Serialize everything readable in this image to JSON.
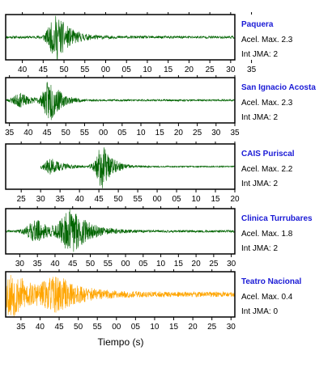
{
  "chart_data": {
    "type": "line",
    "xlabel": "Tiempo (s)",
    "panels": [
      {
        "station": "Paquera",
        "accel": "Acel. Max. 2.3",
        "jma": "Int JMA: 2",
        "color": "#006400",
        "tick_labels": [
          "40",
          "45",
          "50",
          "55",
          "00",
          "05",
          "10",
          "15",
          "20",
          "25",
          "30",
          "35"
        ],
        "first_tick_at": 40,
        "view": [
          36,
          91
        ],
        "signal_start": 36,
        "signal_end": 91,
        "bursts": [
          {
            "t": 48.5,
            "amp": 1.0,
            "w": 3.0
          }
        ],
        "noise": 0.06,
        "seed": 11
      },
      {
        "station": "San Ignacio Acosta",
        "accel": "Acel. Max. 2.3",
        "jma": "Int JMA: 2",
        "color": "#006400",
        "tick_labels": [
          "35",
          "40",
          "45",
          "50",
          "55",
          "00",
          "05",
          "10",
          "15",
          "20",
          "25",
          "30",
          "35"
        ],
        "first_tick_at": 35,
        "view": [
          34,
          95
        ],
        "signal_start": 34,
        "signal_end": 95,
        "bursts": [
          {
            "t": 38,
            "amp": 0.3,
            "w": 3.0
          },
          {
            "t": 46,
            "amp": 1.0,
            "w": 2.5
          }
        ],
        "noise": 0.04,
        "seed": 23
      },
      {
        "station": "CAIS Puriscal",
        "accel": "Acel. Max. 2.2",
        "jma": "Int JMA: 2",
        "color": "#006400",
        "tick_labels": [
          "25",
          "30",
          "35",
          "40",
          "45",
          "50",
          "55",
          "00",
          "05",
          "10",
          "15",
          "20"
        ],
        "first_tick_at": 25,
        "view": [
          21,
          80
        ],
        "signal_start": 30,
        "signal_end": 80,
        "bursts": [
          {
            "t": 33,
            "amp": 0.35,
            "w": 3.0
          },
          {
            "t": 46,
            "amp": 1.0,
            "w": 2.5
          }
        ],
        "noise": 0.03,
        "seed": 37
      },
      {
        "station": "Clinica Turrubares",
        "accel": "Acel. Max. 1.8",
        "jma": "Int JMA: 2",
        "color": "#006400",
        "tick_labels": [
          "30",
          "35",
          "40",
          "45",
          "50",
          "55",
          "00",
          "05",
          "10",
          "15",
          "20",
          "25",
          "30"
        ],
        "first_tick_at": 30,
        "view": [
          26,
          91
        ],
        "signal_start": 26,
        "signal_end": 91,
        "bursts": [
          {
            "t": 35,
            "amp": 0.5,
            "w": 4.0
          },
          {
            "t": 45,
            "amp": 1.0,
            "w": 4.5
          }
        ],
        "noise": 0.05,
        "seed": 41
      },
      {
        "station": "Teatro Nacional",
        "accel": "Acel. Max. 0.4",
        "jma": "Int JMA: 0",
        "color": "#ffa500",
        "tick_labels": [
          "35",
          "40",
          "45",
          "50",
          "55",
          "00",
          "05",
          "10",
          "15",
          "20",
          "25",
          "30"
        ],
        "first_tick_at": 35,
        "view": [
          31,
          91
        ],
        "signal_start": 31,
        "signal_end": 91,
        "bursts": [
          {
            "t": 33,
            "amp": 1.0,
            "w": 5.0
          },
          {
            "t": 45,
            "amp": 0.65,
            "w": 6.0
          }
        ],
        "noise": 0.12,
        "seed": 53
      }
    ]
  }
}
